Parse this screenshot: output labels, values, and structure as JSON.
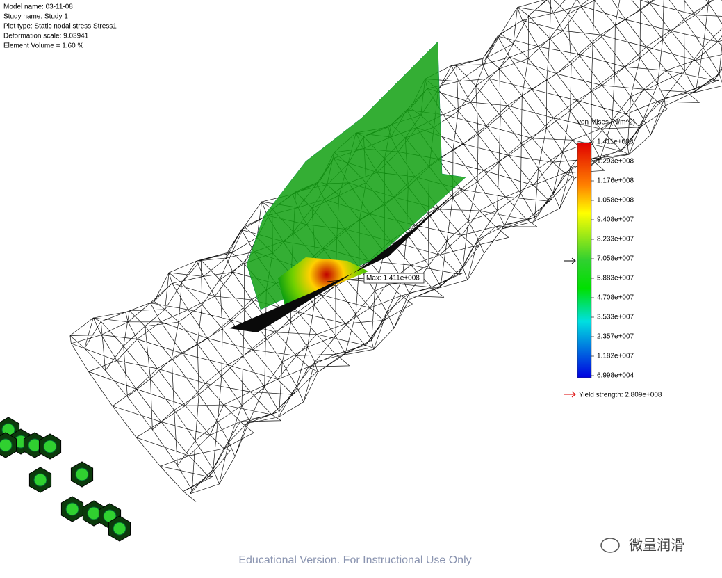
{
  "info": [
    "Model name: 03-11-08",
    "Study name: Study 1",
    "Plot type: Static nodal stress Stress1",
    "Deformation scale: 9.03941",
    "Element Volume = 1.60 %"
  ],
  "legend": {
    "title": "von Mises (N/m^2)",
    "labels": [
      "1.411e+008",
      "1.293e+008",
      "1.176e+008",
      "1.058e+008",
      "9.408e+007",
      "8.233e+007",
      "7.058e+007",
      "5.883e+007",
      "4.708e+007",
      "3.533e+007",
      "2.357e+007",
      "1.182e+007",
      "6.998e+004"
    ],
    "yield": "Yield strength: 2.809e+008"
  },
  "max_label": "Max: 1.411e+008",
  "watermark": "Educational Version. For Instructional Use Only",
  "logo": "微量润滑"
}
